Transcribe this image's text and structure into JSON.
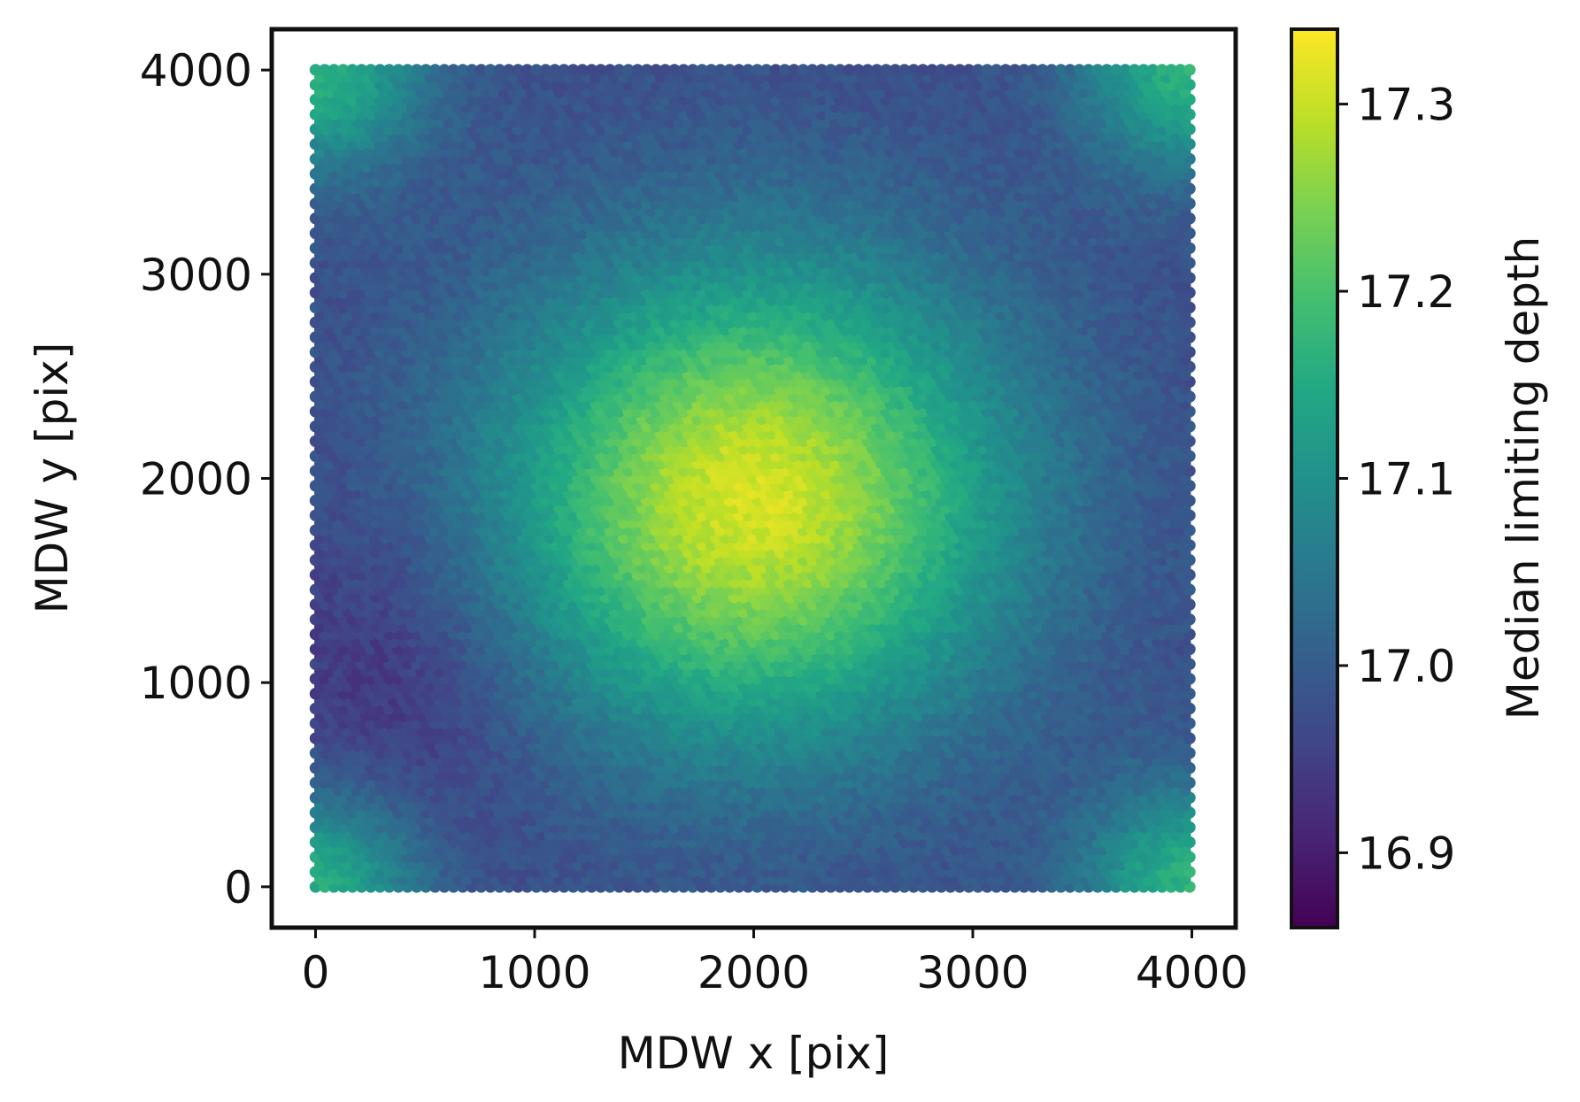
{
  "chart_data": {
    "type": "heatmap",
    "plot_style": "hexbin",
    "xlabel": "MDW x [pix]",
    "ylabel": "MDW y [pix]",
    "xlim": [
      -200,
      4200
    ],
    "ylim": [
      -200,
      4200
    ],
    "data_extent": {
      "x": [
        0,
        4000
      ],
      "y": [
        0,
        4000
      ]
    },
    "x_ticks": [
      0,
      1000,
      2000,
      3000,
      4000
    ],
    "x_tick_labels": [
      "0",
      "1000",
      "2000",
      "3000",
      "4000"
    ],
    "y_ticks": [
      0,
      1000,
      2000,
      3000,
      4000
    ],
    "y_tick_labels": [
      "0",
      "1000",
      "2000",
      "3000",
      "4000"
    ],
    "grid": false,
    "colormap": "viridis",
    "colorbar": {
      "label": "Median limiting depth",
      "range": [
        16.86,
        17.34
      ],
      "ticks": [
        16.9,
        17.0,
        17.1,
        17.2,
        17.3
      ],
      "tick_labels": [
        "16.9",
        "17.0",
        "17.1",
        "17.2",
        "17.3"
      ]
    },
    "field_description": {
      "peak": {
        "x": 2000,
        "y": 1900,
        "value": 17.31
      },
      "bright_corners_value": 17.2,
      "minimum": {
        "x": 400,
        "y": 1000,
        "value": 16.93
      }
    }
  },
  "colors": {
    "frame": "#111111",
    "background": "#ffffff"
  }
}
